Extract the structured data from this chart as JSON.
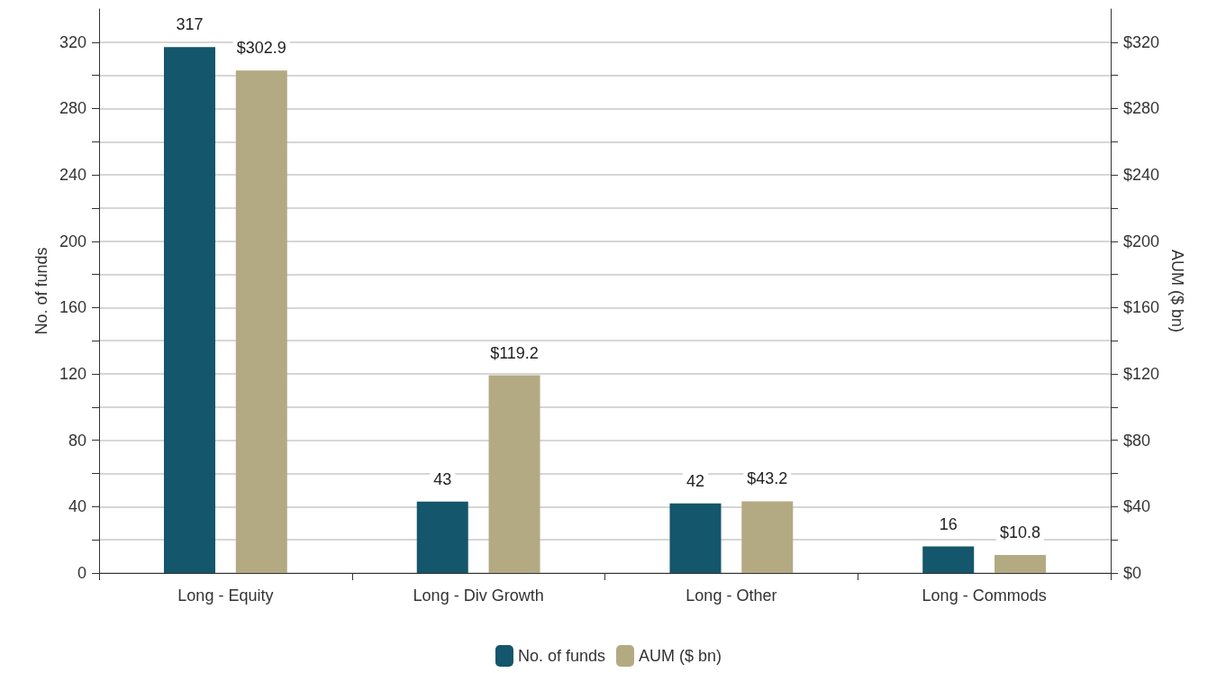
{
  "chart_data": {
    "type": "bar",
    "categories": [
      "Long - Equity",
      "Long - Div Growth",
      "Long - Other",
      "Long - Commods"
    ],
    "series": [
      {
        "name": "No. of funds",
        "color": "#14566b",
        "values": [
          317,
          43,
          42,
          16
        ],
        "value_labels": [
          "317",
          "43",
          "42",
          "16"
        ]
      },
      {
        "name": "AUM ($ bn)",
        "color": "#b3aa83",
        "axis": "y2",
        "values": [
          302.9,
          119.2,
          43.2,
          10.8
        ],
        "value_labels": [
          "$302.9",
          "$119.2",
          "$43.2",
          "$10.8"
        ]
      }
    ],
    "ylabel": "No. of funds",
    "y2label": "AUM ($ bn)",
    "ylim": [
      0,
      340
    ],
    "yticks": [
      0,
      {
        "value": 20,
        "label": null
      },
      40,
      {
        "value": 60,
        "label": null
      },
      80,
      {
        "value": 100,
        "label": null
      },
      120,
      {
        "value": 140,
        "label": null
      },
      160,
      {
        "value": 180,
        "label": null
      },
      200,
      {
        "value": 220,
        "label": null
      },
      240,
      {
        "value": 260,
        "label": null
      },
      280,
      {
        "value": 300,
        "label": null
      },
      320
    ],
    "y2lim": [
      0,
      340
    ],
    "y2ticks": [
      {
        "value": 0,
        "label": "$0"
      },
      {
        "value": 20,
        "label": null
      },
      {
        "value": 40,
        "label": "$40"
      },
      {
        "value": 60,
        "label": null
      },
      {
        "value": 80,
        "label": "$80"
      },
      {
        "value": 100,
        "label": null
      },
      {
        "value": 120,
        "label": "$120"
      },
      {
        "value": 140,
        "label": null
      },
      {
        "value": 160,
        "label": "$160"
      },
      {
        "value": 180,
        "label": null
      },
      {
        "value": 200,
        "label": "$200"
      },
      {
        "value": 220,
        "label": null
      },
      {
        "value": 240,
        "label": "$240"
      },
      {
        "value": 260,
        "label": null
      },
      {
        "value": 280,
        "label": "$280"
      },
      {
        "value": 300,
        "label": null
      },
      {
        "value": 320,
        "label": "$320"
      }
    ],
    "grid": "y",
    "legend": "bottom"
  }
}
